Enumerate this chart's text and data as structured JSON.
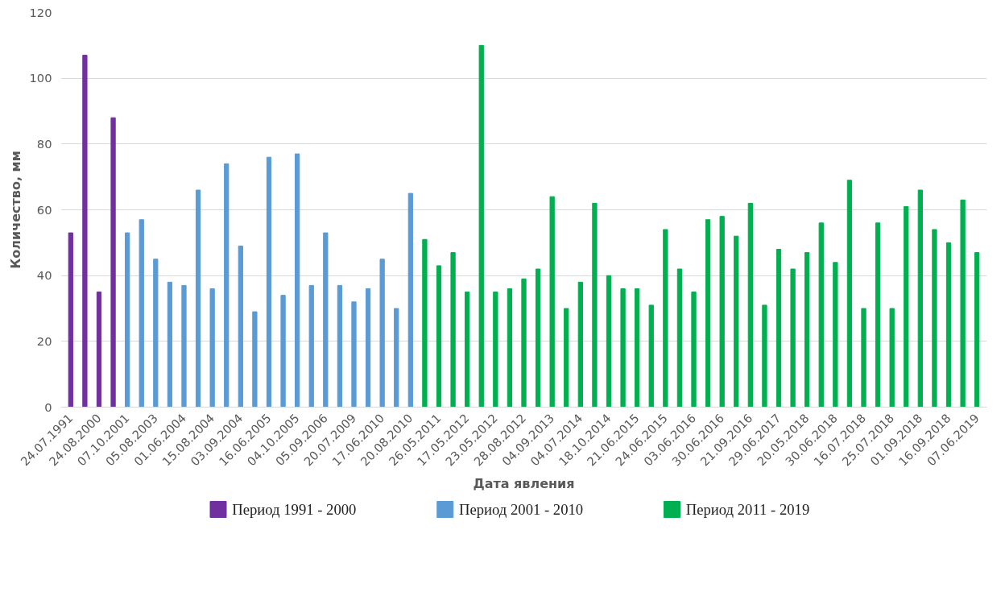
{
  "chart_data": {
    "type": "bar",
    "xlabel": "Дата явления",
    "ylabel": "Количество, мм",
    "categories": [
      "24.07.1991",
      null,
      "24.08.2000",
      null,
      "07.10.2001",
      null,
      "05.08.2003",
      null,
      "01.06.2004",
      null,
      "15.08.2004",
      null,
      "03.09.2004",
      null,
      "16.06.2005",
      null,
      "04.10.2005",
      null,
      "05.09.2006",
      null,
      "20.07.2009",
      null,
      "17.06.2010",
      null,
      "20.08.2010",
      null,
      "26.05.2011",
      null,
      "17.05.2012",
      null,
      "23.05.2012",
      null,
      "28.08.2012",
      null,
      "04.09.2013",
      null,
      "04.07.2014",
      null,
      "18.10.2014",
      null,
      "21.06.2015",
      null,
      "24.06.2015",
      null,
      "03.06.2016",
      null,
      "30.06.2016",
      null,
      "21.09.2016",
      null,
      "29.06.2017",
      null,
      "20.05.2018",
      null,
      "30.06.2018",
      null,
      "16.07.2018",
      null,
      "25.07.2018",
      null,
      "01.09.2018",
      null,
      "16.09.2018",
      null,
      "07.06.2019"
    ],
    "series": [
      {
        "name": "Период 1991  - 2000",
        "color": "#7030a0",
        "values": [
          53,
          107,
          35,
          88,
          null,
          null,
          null,
          null,
          null,
          null,
          null,
          null,
          null,
          null,
          null,
          null,
          null,
          null,
          null,
          null,
          null,
          null,
          null,
          null,
          null,
          null,
          null,
          null,
          null,
          null,
          null,
          null,
          null,
          null,
          null,
          null,
          null,
          null,
          null,
          null,
          null,
          null,
          null,
          null,
          null,
          null,
          null,
          null,
          null,
          null,
          null,
          null,
          null,
          null,
          null,
          null,
          null,
          null,
          null,
          null,
          null,
          null,
          null,
          null,
          null
        ]
      },
      {
        "name": "Период 2001  - 2010",
        "color": "#5b9bd5",
        "values": [
          null,
          null,
          null,
          null,
          53,
          57,
          45,
          38,
          37,
          66,
          36,
          74,
          49,
          29,
          76,
          34,
          77,
          37,
          53,
          37,
          32,
          36,
          45,
          30,
          65,
          null,
          null,
          null,
          null,
          null,
          null,
          null,
          null,
          null,
          null,
          null,
          null,
          null,
          null,
          null,
          null,
          null,
          null,
          null,
          null,
          null,
          null,
          null,
          null,
          null,
          null,
          null,
          null,
          null,
          null,
          null,
          null,
          null,
          null,
          null,
          null,
          null,
          null,
          null,
          null
        ]
      },
      {
        "name": "Период 2011  - 2019",
        "color": "#00b050",
        "values": [
          null,
          null,
          null,
          null,
          null,
          null,
          null,
          null,
          null,
          null,
          null,
          null,
          null,
          null,
          null,
          null,
          null,
          null,
          null,
          null,
          null,
          null,
          null,
          null,
          null,
          51,
          43,
          47,
          35,
          110,
          35,
          36,
          39,
          42,
          64,
          30,
          38,
          62,
          40,
          36,
          36,
          31,
          54,
          42,
          35,
          57,
          58,
          52,
          62,
          31,
          48,
          42,
          47,
          56,
          44,
          69,
          30,
          56,
          30,
          61,
          66,
          54,
          50,
          63,
          47
        ]
      }
    ],
    "ylim": [
      0,
      120
    ],
    "yticks": [
      0,
      20,
      40,
      60,
      80,
      100,
      120
    ],
    "grid": "y",
    "legend": "bottom"
  }
}
